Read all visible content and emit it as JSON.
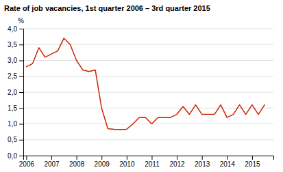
{
  "chart_data": {
    "type": "line",
    "title": "Rate of job vacancies, 1st quarter 2006 – 3rd quarter 2015",
    "ylabel": "%",
    "color": "#cc2200",
    "grid": "y",
    "x": [
      2006.0,
      2006.25,
      2006.5,
      2006.75,
      2007.0,
      2007.25,
      2007.5,
      2007.75,
      2008.0,
      2008.25,
      2008.5,
      2008.75,
      2009.0,
      2009.25,
      2009.5,
      2009.75,
      2010.0,
      2010.25,
      2010.5,
      2010.75,
      2011.0,
      2011.25,
      2011.5,
      2011.75,
      2012.0,
      2012.25,
      2012.5,
      2012.75,
      2013.0,
      2013.25,
      2013.5,
      2013.75,
      2014.0,
      2014.25,
      2014.5,
      2014.75,
      2015.0,
      2015.25,
      2015.5
    ],
    "values": [
      2.8,
      2.9,
      3.4,
      3.1,
      3.2,
      3.3,
      3.7,
      3.5,
      3.0,
      2.7,
      2.65,
      2.7,
      1.5,
      0.85,
      0.83,
      0.82,
      0.83,
      1.0,
      1.2,
      1.2,
      1.0,
      1.2,
      1.2,
      1.2,
      1.3,
      1.55,
      1.3,
      1.6,
      1.3,
      1.3,
      1.3,
      1.6,
      1.2,
      1.3,
      1.6,
      1.3,
      1.6,
      1.3,
      1.6
    ],
    "xlim": [
      2005.88,
      2015.85
    ],
    "xticks": [
      2006,
      2007,
      2008,
      2009,
      2010,
      2011,
      2012,
      2013,
      2014,
      2015
    ],
    "ylim": [
      0.0,
      4.0
    ],
    "yticks": [
      {
        "value": 0.0,
        "label": "0,0"
      },
      {
        "value": 0.5,
        "label": "0,5"
      },
      {
        "value": 1.0,
        "label": "1,0"
      },
      {
        "value": 1.5,
        "label": "1,5"
      },
      {
        "value": 2.0,
        "label": "2,0"
      },
      {
        "value": 2.5,
        "label": "2,5"
      },
      {
        "value": 3.0,
        "label": "3,0"
      },
      {
        "value": 3.5,
        "label": "3,5"
      },
      {
        "value": 4.0,
        "label": "4,0"
      }
    ]
  }
}
